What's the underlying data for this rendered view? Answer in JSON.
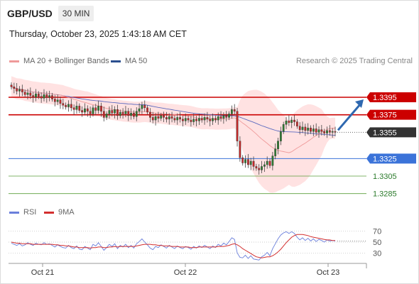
{
  "header": {
    "symbol": "GBP/USD",
    "timeframe": "30 MIN"
  },
  "datetime": "Thursday, October 23, 2025 1:43:18 AM CET",
  "legend": {
    "ma20_label": "MA 20 + Bollinger Bands",
    "ma50_label": "MA 50",
    "rsi_label": "RSI",
    "rsi_ma_label": "9MA"
  },
  "credit": "Research © 2025 Trading Central",
  "colors": {
    "up": "#2e7d32",
    "down": "#c62828",
    "ma20": "#ef9a9a",
    "ma50": "#5c6bc0",
    "band": "#ffdddd",
    "resistance": "#cc0000",
    "support_blue": "#3b73d9",
    "support_green": "#5a9e3a",
    "current": "#333333",
    "arrow": "#2e68b0",
    "rsi": "#6a7fdb",
    "rsi_ma": "#d32f2f"
  },
  "chart_data": [
    {
      "type": "candlestick",
      "symbol": "GBP/USD",
      "interval": "30 MIN",
      "x_tick_labels": [
        "Oct 21",
        "Oct 22",
        "Oct 23"
      ],
      "ylim": [
        1.3275,
        1.3425
      ],
      "current_price": 1.3355,
      "levels": [
        {
          "label": "1.3395",
          "value": 1.3395,
          "kind": "resistance"
        },
        {
          "label": "1.3375",
          "value": 1.3375,
          "kind": "resistance"
        },
        {
          "label": "1.3355",
          "value": 1.3355,
          "kind": "current"
        },
        {
          "label": "1.3325",
          "value": 1.3325,
          "kind": "support"
        },
        {
          "label": "1.3305",
          "value": 1.3305,
          "kind": "support_minor"
        },
        {
          "label": "1.3285",
          "value": 1.3285,
          "kind": "support_minor"
        }
      ],
      "closes": [
        1.3407,
        1.3405,
        1.3402,
        1.3404,
        1.3401,
        1.3398,
        1.34,
        1.3397,
        1.3395,
        1.3399,
        1.3396,
        1.3394,
        1.3398,
        1.3395,
        1.3397,
        1.3393,
        1.339,
        1.3392,
        1.3388,
        1.3386,
        1.3384,
        1.3387,
        1.3383,
        1.3381,
        1.3385,
        1.338,
        1.3378,
        1.3382,
        1.3379,
        1.3376,
        1.3383,
        1.338,
        1.3385,
        1.3379,
        1.3372,
        1.3376,
        1.338,
        1.3377,
        1.3381,
        1.3374,
        1.3378,
        1.3376,
        1.3379,
        1.3374,
        1.3377,
        1.3373,
        1.3379,
        1.3382,
        1.3386,
        1.3383,
        1.3378,
        1.3372,
        1.3369,
        1.3373,
        1.3371,
        1.3374,
        1.3372,
        1.337,
        1.3373,
        1.3371,
        1.3369,
        1.3372,
        1.337,
        1.3368,
        1.3371,
        1.3369,
        1.3367,
        1.337,
        1.3368,
        1.3371,
        1.3369,
        1.3372,
        1.337,
        1.3368,
        1.3371,
        1.3369,
        1.3373,
        1.3371,
        1.3374,
        1.3372,
        1.3376,
        1.3381,
        1.3379,
        1.3345,
        1.3326,
        1.332,
        1.3324,
        1.3318,
        1.3322,
        1.3316,
        1.3314,
        1.3312,
        1.3316,
        1.3318,
        1.3322,
        1.3317,
        1.3328,
        1.3336,
        1.3345,
        1.3356,
        1.3364,
        1.3368,
        1.3366,
        1.3369,
        1.3367,
        1.3362,
        1.3358,
        1.3361,
        1.3357,
        1.336,
        1.3356,
        1.3359,
        1.3355,
        1.3358,
        1.3356,
        1.3354,
        1.3357,
        1.3355,
        1.3356,
        1.3355
      ],
      "ma20_band_low_high": "shown as shaded envelope",
      "projection": {
        "from": 1.3355,
        "to": 1.3395,
        "direction": "up"
      }
    },
    {
      "type": "line",
      "name": "RSI panel",
      "series_labels": [
        "RSI",
        "9MA"
      ],
      "ylim": [
        20,
        80
      ],
      "y_tick_labels": [
        "70",
        "50",
        "30"
      ],
      "y_ticks": [
        70,
        50,
        30
      ],
      "rsi": [
        48,
        46,
        44,
        47,
        43,
        45,
        49,
        46,
        44,
        48,
        46,
        45,
        49,
        46,
        47,
        44,
        41,
        45,
        42,
        40,
        39,
        44,
        40,
        38,
        43,
        37,
        36,
        42,
        39,
        36,
        46,
        43,
        49,
        42,
        35,
        40,
        46,
        42,
        47,
        38,
        44,
        41,
        46,
        40,
        44,
        39,
        47,
        51,
        56,
        50,
        45,
        39,
        36,
        42,
        40,
        45,
        42,
        39,
        44,
        41,
        38,
        43,
        40,
        38,
        42,
        40,
        37,
        42,
        39,
        43,
        40,
        44,
        41,
        38,
        43,
        40,
        46,
        43,
        48,
        45,
        51,
        58,
        55,
        30,
        22,
        21,
        26,
        20,
        25,
        19,
        18,
        17,
        23,
        26,
        31,
        25,
        38,
        47,
        56,
        63,
        67,
        69,
        66,
        69,
        66,
        59,
        54,
        58,
        53,
        57,
        52,
        56,
        51,
        55,
        53,
        50,
        54,
        52,
        53,
        52
      ],
      "rsi_ma": [
        50,
        49,
        48,
        48,
        47,
        47,
        47,
        47,
        46,
        46,
        46,
        46,
        46,
        46,
        46,
        46,
        45,
        45,
        44,
        44,
        43,
        43,
        42,
        41,
        41,
        40,
        40,
        40,
        40,
        39,
        40,
        40,
        41,
        41,
        40,
        40,
        41,
        41,
        42,
        41,
        42,
        42,
        42,
        42,
        42,
        42,
        43,
        44,
        45,
        46,
        46,
        46,
        45,
        45,
        44,
        44,
        43,
        43,
        43,
        42,
        42,
        42,
        41,
        41,
        41,
        41,
        40,
        40,
        40,
        41,
        41,
        41,
        41,
        41,
        41,
        41,
        42,
        42,
        42,
        43,
        44,
        46,
        47,
        45,
        42,
        38,
        35,
        32,
        29,
        26,
        23,
        22,
        21,
        22,
        23,
        23,
        25,
        28,
        32,
        37,
        43,
        49,
        54,
        59,
        62,
        64,
        64,
        64,
        63,
        62,
        60,
        59,
        58,
        57,
        56,
        55,
        54,
        54,
        53,
        53
      ]
    }
  ]
}
